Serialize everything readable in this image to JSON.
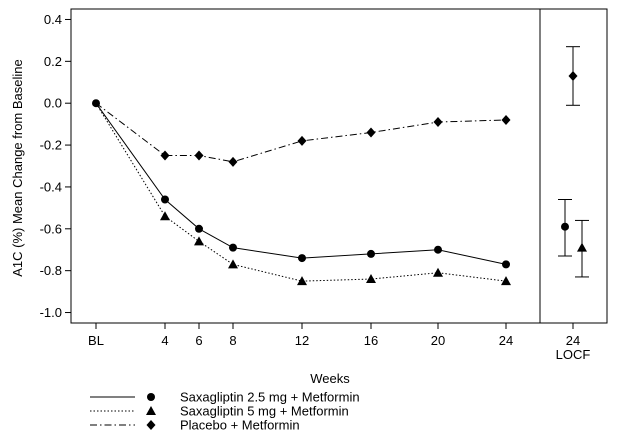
{
  "chart_data": {
    "type": "line",
    "ylabel": "A1C (%) Mean Change from Baseline",
    "xlabel": "Weeks",
    "ylim": [
      -1.05,
      0.45
    ],
    "yticks": [
      0.4,
      0.2,
      0.0,
      -0.2,
      -0.4,
      -0.6,
      -0.8,
      -1.0
    ],
    "ytick_labels": [
      "0.4",
      "0.2",
      "0.0",
      "-0.2",
      "-0.4",
      "-0.6",
      "-0.8",
      "-1.0"
    ],
    "x": [
      0,
      4,
      6,
      8,
      12,
      16,
      20,
      24
    ],
    "xtick_labels": [
      "BL",
      "4",
      "6",
      "8",
      "12",
      "16",
      "20",
      "24"
    ],
    "series": [
      {
        "name": "Saxagliptin 2.5 mg + Metformin",
        "marker": "circle",
        "line": "solid",
        "values": [
          0.0,
          -0.46,
          -0.6,
          -0.69,
          -0.74,
          -0.72,
          -0.7,
          -0.77
        ]
      },
      {
        "name": "Saxagliptin 5 mg + Metformin",
        "marker": "triangle",
        "line": "dotted",
        "values": [
          0.0,
          -0.54,
          -0.66,
          -0.77,
          -0.85,
          -0.84,
          -0.81,
          -0.85
        ]
      },
      {
        "name": "Placebo + Metformin",
        "marker": "diamond",
        "line": "dashdot",
        "values": [
          0.0,
          -0.25,
          -0.25,
          -0.28,
          -0.18,
          -0.14,
          -0.09,
          -0.08
        ]
      }
    ],
    "locf": {
      "tick_top": "24",
      "tick_bottom": "LOCF",
      "points": [
        {
          "series": "Saxagliptin 2.5 mg + Metformin",
          "marker": "circle",
          "value": -0.59,
          "low": -0.73,
          "high": -0.46
        },
        {
          "series": "Saxagliptin 5 mg + Metformin",
          "marker": "triangle",
          "value": -0.69,
          "low": -0.83,
          "high": -0.56
        },
        {
          "series": "Placebo + Metformin",
          "marker": "diamond",
          "value": 0.13,
          "low": -0.01,
          "high": 0.27
        }
      ]
    },
    "legend": {
      "placement": "bottom-left"
    }
  }
}
